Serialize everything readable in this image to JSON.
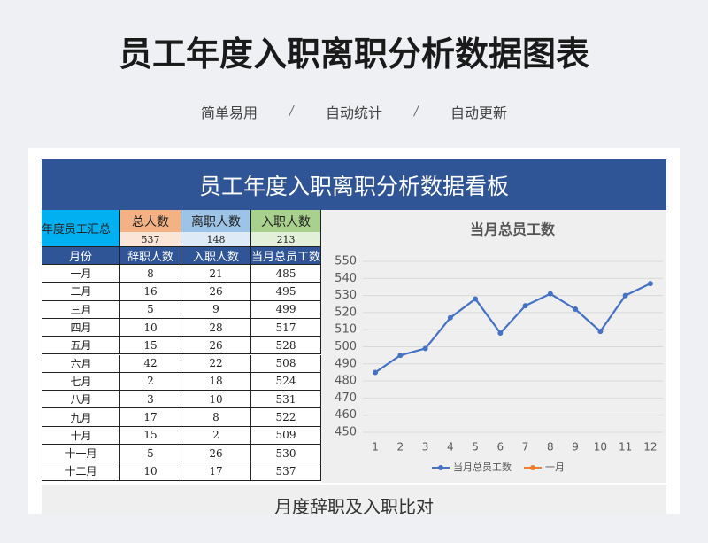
{
  "header": {
    "title": "员工年度入职离职分析数据图表",
    "tags": [
      "简单易用",
      "自动统计",
      "自动更新"
    ]
  },
  "board": {
    "title": "员工年度入职离职分析数据看板",
    "summary": {
      "label": "年度员工汇总",
      "headers": [
        "总人数",
        "离职人数",
        "入职人数"
      ],
      "values": [
        537,
        148,
        213
      ]
    },
    "table": {
      "headers": [
        "月份",
        "辞职人数",
        "入职人数",
        "当月总员工数"
      ],
      "rows": [
        [
          "一月",
          8,
          21,
          485
        ],
        [
          "二月",
          16,
          26,
          495
        ],
        [
          "三月",
          5,
          9,
          499
        ],
        [
          "四月",
          10,
          28,
          517
        ],
        [
          "五月",
          15,
          26,
          528
        ],
        [
          "六月",
          42,
          22,
          508
        ],
        [
          "七月",
          2,
          18,
          524
        ],
        [
          "八月",
          3,
          10,
          531
        ],
        [
          "九月",
          17,
          8,
          522
        ],
        [
          "十月",
          15,
          2,
          509
        ],
        [
          "十一月",
          5,
          26,
          530
        ],
        [
          "十二月",
          10,
          17,
          537
        ]
      ]
    },
    "chart": {
      "type": "line",
      "title": "当月总员工数",
      "x": [
        1,
        2,
        3,
        4,
        5,
        6,
        7,
        8,
        9,
        10,
        11,
        12
      ],
      "xlim": [
        0.5,
        12.5
      ],
      "series": [
        {
          "name": "当月总员工数",
          "color": "#4472c4",
          "values": [
            485,
            495,
            499,
            517,
            528,
            508,
            524,
            531,
            522,
            509,
            530,
            537
          ]
        },
        {
          "name": "一月",
          "color": "#ed7d31",
          "values": [
            null,
            null,
            null,
            null,
            null,
            null,
            null,
            null,
            null,
            null,
            null,
            null
          ]
        }
      ],
      "ylim": [
        450,
        550
      ],
      "yticks": [
        450,
        460,
        470,
        480,
        490,
        500,
        510,
        520,
        530,
        540,
        550
      ]
    },
    "next_title": "月度辞职及入职比对"
  }
}
